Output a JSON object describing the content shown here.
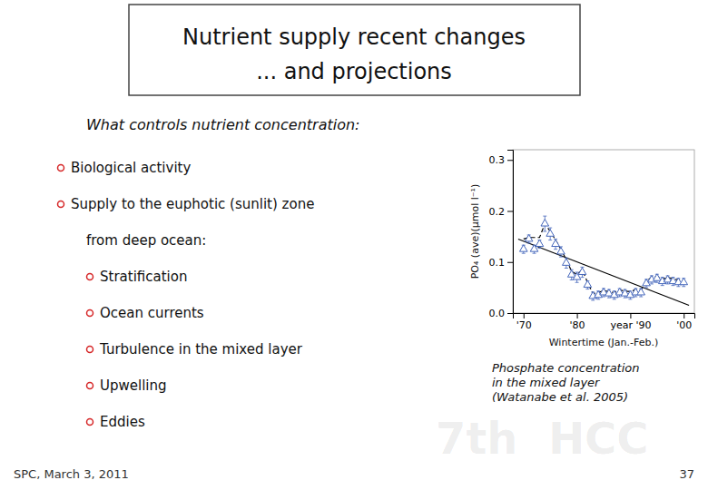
{
  "chart_data": {
    "type": "scatter",
    "title": "Nutrient supply recent changes\n... and projections",
    "subtitle": "What controls nutrient concentration:",
    "x_label": "Wintertime (Jan.-Feb.)",
    "y_label": "PO₄ (ave)(μmol l⁻¹)",
    "x": [
      1970,
      1971,
      1972,
      1973,
      1974,
      1975,
      1976,
      1977,
      1978,
      1979,
      1980,
      1981,
      1982,
      1983,
      1984,
      1985,
      1986,
      1987,
      1988,
      1989,
      1990,
      1991,
      1992,
      1993,
      1994,
      1995,
      1996,
      1997,
      1998,
      1999,
      2000
    ],
    "series": [
      {
        "type": "scatter",
        "marker": "triangle",
        "color": "#4466bb",
        "values": [
          0.125,
          0.145,
          0.125,
          0.135,
          0.175,
          0.155,
          0.135,
          0.12,
          0.098,
          0.075,
          0.07,
          0.08,
          0.055,
          0.033,
          0.035,
          0.04,
          0.038,
          0.035,
          0.04,
          0.038,
          0.035,
          0.04,
          0.04,
          0.058,
          0.065,
          0.068,
          0.062,
          0.065,
          0.062,
          0.06,
          0.06
        ],
        "error": [
          0.008,
          0.008,
          0.008,
          0.008,
          0.015,
          0.012,
          0.01,
          0.01,
          0.01,
          0.01,
          0.01,
          0.01,
          0.008,
          0.008,
          0.008,
          0.008,
          0.008,
          0.008,
          0.008,
          0.008,
          0.008,
          0.008,
          0.008,
          0.008,
          0.008,
          0.008,
          0.008,
          0.008,
          0.008,
          0.008,
          0.008
        ]
      },
      {
        "type": "line",
        "line_style": "dashed",
        "color": "#000000",
        "values": [
          0.145,
          0.148,
          0.148,
          0.148,
          0.175,
          0.16,
          0.143,
          0.125,
          0.105,
          0.082,
          0.075,
          0.085,
          0.06,
          0.038,
          0.04,
          0.044,
          0.042,
          0.04,
          0.045,
          0.043,
          0.042,
          0.046,
          0.045,
          0.063,
          0.07,
          0.072,
          0.066,
          0.07,
          0.067,
          0.065,
          0.065
        ]
      },
      {
        "type": "line",
        "line_style": "solid",
        "color": "#000000",
        "x": [
          1969,
          2001
        ],
        "values": [
          0.145,
          0.015
        ]
      }
    ],
    "xlim": [
      1968,
      2002
    ],
    "xticks": [
      {
        "value": 1970,
        "label": "'70"
      },
      {
        "value": 1980,
        "label": "'80"
      },
      {
        "value": 1990,
        "label": "year '90"
      },
      {
        "value": 2000,
        "label": "'00"
      }
    ],
    "ylim": [
      0.0,
      0.32
    ],
    "yticks": [
      {
        "value": 0.0,
        "label": "0.0"
      },
      0.1,
      0.2,
      0.3
    ],
    "grid": false,
    "annotations": [
      {
        "text": "Biological activity",
        "level": 0
      },
      {
        "text": "Supply to the euphotic (sunlit) zone",
        "level": 0
      },
      {
        "text": "from deep ocean:",
        "level": 1
      },
      {
        "text": "Stratification",
        "level": 2
      },
      {
        "text": "Ocean currents",
        "level": 2
      },
      {
        "text": "Turbulence in the mixed layer",
        "level": 2
      },
      {
        "text": "Upwelling",
        "level": 2
      },
      {
        "text": "Eddies",
        "level": 2
      },
      {
        "text": "Phosphate concentration\nin the mixed layer\n(Watanabe et al. 2005)"
      },
      {
        "text": "SPC, March 3, 2011"
      },
      {
        "text": "37"
      },
      {
        "text": "7th  HCC"
      }
    ]
  }
}
